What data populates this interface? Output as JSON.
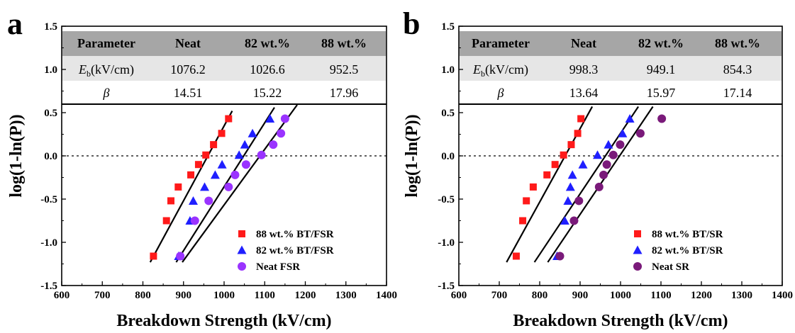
{
  "colors": {
    "red": "#ff1a1a",
    "blue": "#1f1fff",
    "violet": "#9a33ff",
    "purple": "#7a1a7a",
    "table_header_bg": "#a6a6a6",
    "table_row1_bg": "#e6e6e6"
  },
  "chart_data": [
    {
      "type": "scatter",
      "panel_label": "a",
      "xlabel": "Breakdown Strength (kV/cm)",
      "ylabel": "log(1-ln(P))",
      "xlim": [
        600,
        1400
      ],
      "ylim": [
        -1.5,
        1.5
      ],
      "x_ticks": [
        "600",
        "700",
        "800",
        "900",
        "1000",
        "1100",
        "1200",
        "1300",
        "1400"
      ],
      "y_ticks": [
        "-1.5",
        "-1.0",
        "-0.5",
        "0.0",
        "0.5",
        "1.0",
        "1.5"
      ],
      "reference_line_y": 0.0,
      "legend_position": "bottom-right",
      "table": {
        "headers": [
          "Parameter",
          "Neat",
          "82 wt.%",
          "88 wt.%"
        ],
        "row1_label_main": "E",
        "row1_label_sub": "b",
        "row1_label_unit": "(kV/cm)",
        "row1_values": [
          "1076.2",
          "1026.6",
          "952.5"
        ],
        "row2_label": "β",
        "row2_values": [
          "14.51",
          "15.22",
          "17.96"
        ]
      },
      "series": [
        {
          "name": "88 wt.% BT/FSR",
          "marker": "square",
          "color": "red",
          "x": [
            826,
            858,
            869,
            887,
            918,
            937,
            955,
            974,
            994,
            1011
          ],
          "y": [
            -1.16,
            -0.75,
            -0.52,
            -0.36,
            -0.22,
            -0.1,
            0.01,
            0.13,
            0.26,
            0.43
          ],
          "fit_x": [
            818,
            1020
          ],
          "fit_y": [
            -1.23,
            0.52
          ]
        },
        {
          "name": "82 wt.% BT/FSR",
          "marker": "triangle",
          "color": "blue",
          "x": [
            888,
            916,
            924,
            952,
            978,
            995,
            1037,
            1051,
            1070,
            1113
          ],
          "y": [
            -1.16,
            -0.75,
            -0.52,
            -0.36,
            -0.22,
            -0.1,
            0.01,
            0.13,
            0.26,
            0.43
          ],
          "fit_x": [
            882,
            1124
          ],
          "fit_y": [
            -1.23,
            0.56
          ]
        },
        {
          "name": "Neat FSR",
          "marker": "circle",
          "color": "violet",
          "x": [
            892,
            928,
            962,
            1054,
            1011,
            1027,
            1092,
            1121,
            1140,
            1150
          ],
          "y": [
            -1.16,
            -0.75,
            -0.52,
            -0.1,
            -0.36,
            -0.22,
            0.01,
            0.13,
            0.26,
            0.43
          ],
          "fit_x": [
            897,
            1180
          ],
          "fit_y": [
            -1.23,
            0.59
          ]
        }
      ]
    },
    {
      "type": "scatter",
      "panel_label": "b",
      "xlabel": "Breakdown Strength (kV/cm)",
      "ylabel": "log(1-ln(P))",
      "xlim": [
        600,
        1400
      ],
      "ylim": [
        -1.5,
        1.5
      ],
      "x_ticks": [
        "600",
        "700",
        "800",
        "900",
        "1000",
        "1100",
        "1200",
        "1300",
        "1400"
      ],
      "y_ticks": [
        "-1.5",
        "-1.0",
        "-0.5",
        "0.0",
        "0.5",
        "1.0",
        "1.5"
      ],
      "reference_line_y": 0.0,
      "legend_position": "bottom-right",
      "table": {
        "headers": [
          "Parameter",
          "Neat",
          "82 wt.%",
          "88 wt.%"
        ],
        "row1_label_main": "E",
        "row1_label_sub": "b",
        "row1_label_unit": "(kV/cm)",
        "row1_values": [
          "998.3",
          "949.1",
          "854.3"
        ],
        "row2_label": "β",
        "row2_values": [
          "13.64",
          "15.97",
          "17.14"
        ]
      },
      "series": [
        {
          "name": "88 wt.% BT/SR",
          "marker": "square",
          "color": "red",
          "x": [
            742,
            758,
            767,
            784,
            818,
            838,
            859,
            878,
            894,
            902
          ],
          "y": [
            -1.16,
            -0.75,
            -0.52,
            -0.36,
            -0.22,
            -0.1,
            0.01,
            0.13,
            0.26,
            0.43
          ],
          "fit_x": [
            718,
            930
          ],
          "fit_y": [
            -1.23,
            0.57
          ]
        },
        {
          "name": "82 wt.% BT/SR",
          "marker": "triangle",
          "color": "blue",
          "x": [
            843,
            862,
            870,
            876,
            881,
            907,
            943,
            970,
            1005,
            1023
          ],
          "y": [
            -1.16,
            -0.75,
            -0.52,
            -0.36,
            -0.22,
            -0.1,
            0.01,
            0.13,
            0.26,
            0.43
          ],
          "fit_x": [
            787,
            1044
          ],
          "fit_y": [
            -1.23,
            0.57
          ]
        },
        {
          "name": "Neat SR",
          "marker": "circle",
          "color": "purple",
          "x": [
            850,
            885,
            897,
            947,
            958,
            966,
            982,
            999,
            1049,
            1102
          ],
          "y": [
            -1.16,
            -0.75,
            -0.52,
            -0.36,
            -0.22,
            -0.1,
            0.01,
            0.13,
            0.26,
            0.43
          ],
          "fit_x": [
            820,
            1080
          ],
          "fit_y": [
            -1.23,
            0.57
          ]
        }
      ]
    }
  ]
}
